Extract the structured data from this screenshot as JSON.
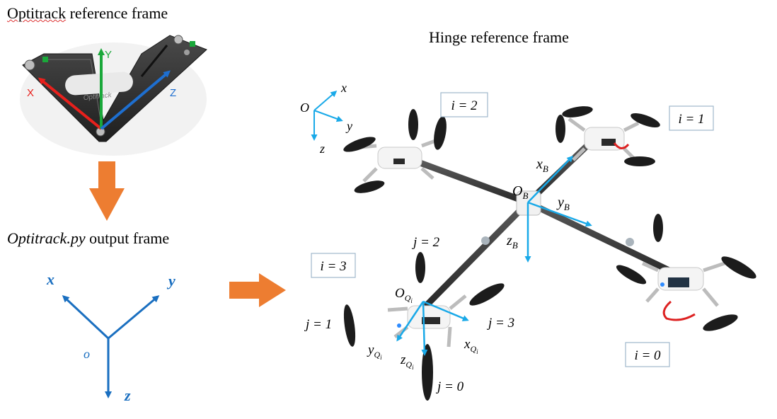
{
  "panel_left": {
    "optitrack_title": "Optitrack",
    "optitrack_title_rest": " reference frame",
    "plate_axes": {
      "x": "X",
      "y": "Y",
      "z": "Z"
    },
    "plate_brand": "Optitrack",
    "output_script": "Optitrack.py",
    "output_rest": " output frame",
    "output_axes": {
      "x": "x",
      "y": "y",
      "z": "z",
      "origin": "o"
    }
  },
  "panel_right": {
    "title": "Hinge reference frame",
    "world_axes": {
      "origin": "O",
      "x": "x",
      "y": "y",
      "z": "z"
    },
    "body_axes": {
      "origin": "O",
      "origin_sub": "B",
      "x": "x",
      "x_sub": "B",
      "y": "y",
      "y_sub": "B",
      "z": "z",
      "z_sub": "B"
    },
    "quad_axes": {
      "origin": "O",
      "origin_sub": "Q",
      "x": "x",
      "x_sub": "Q",
      "y": "y",
      "y_sub": "Q",
      "z": "z",
      "z_sub": "Q",
      "sub_index": "i"
    },
    "drone_labels": [
      "i = 2",
      "i = 1",
      "i = 3",
      "i = 0"
    ],
    "hinge_labels": [
      "j = 2",
      "j = 1",
      "j = 3",
      "j = 0"
    ]
  },
  "colors": {
    "axis_blue": "#1a6fc0",
    "arrow_orange": "#ed7d31",
    "plate_x": "#e8201c",
    "plate_y": "#1aa83a",
    "plate_z": "#1e6fd0",
    "frame_cyan": "#19a9e8",
    "plate_dark": "#2c2c2c",
    "arm_dark": "#3d3d3d"
  }
}
